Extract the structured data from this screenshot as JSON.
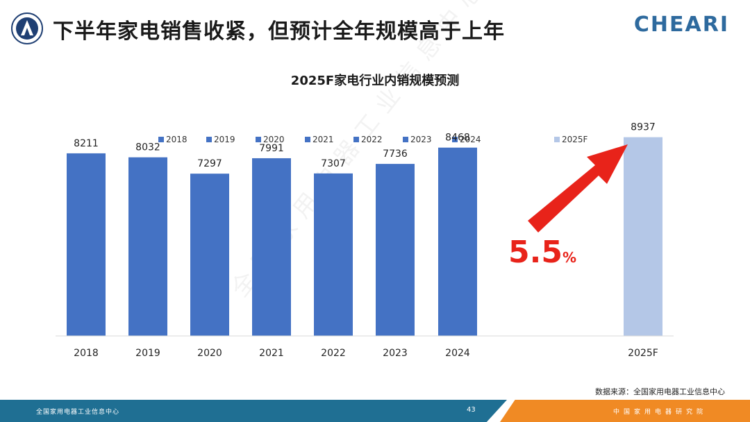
{
  "header": {
    "title": "下半年家电销售收紧，但预计全年规模高于上年",
    "brand": "CHEARI"
  },
  "footer": {
    "left_text": "全国家用电器工业信息中心",
    "page_number": "43",
    "right_text": "中国家用电器研究院"
  },
  "source_note": "数据来源：全国家用电器工业信息中心",
  "growth_annotation": {
    "value": "5.5",
    "unit": "%"
  },
  "watermark": "全国家用电器工业信息中心",
  "colors": {
    "bar": "#4472c4",
    "forecast_bar": "#b4c7e7",
    "arrow": "#e8231a",
    "growth_text": "#e8231a",
    "title": "#1a1a1a",
    "brand": "#2e6a9e",
    "footer_blue": "#1f6f93",
    "footer_orange": "#f08a24"
  },
  "chart_data": {
    "type": "bar",
    "title": "2025F家电行业内销规模预测",
    "categories": [
      "2018",
      "2019",
      "2020",
      "2021",
      "2022",
      "2023",
      "2024",
      "2025F"
    ],
    "values": [
      8211,
      8032,
      7297,
      7991,
      7307,
      7736,
      8468,
      8937
    ],
    "forecast": [
      false,
      false,
      false,
      false,
      false,
      false,
      false,
      true
    ],
    "legend": [
      "2018",
      "2019",
      "2020",
      "2021",
      "2022",
      "2023",
      "2024",
      "2025F"
    ],
    "legend_position": "top",
    "ylim": [
      0,
      9800
    ],
    "grid": false,
    "xlabel": "",
    "ylabel": ""
  }
}
